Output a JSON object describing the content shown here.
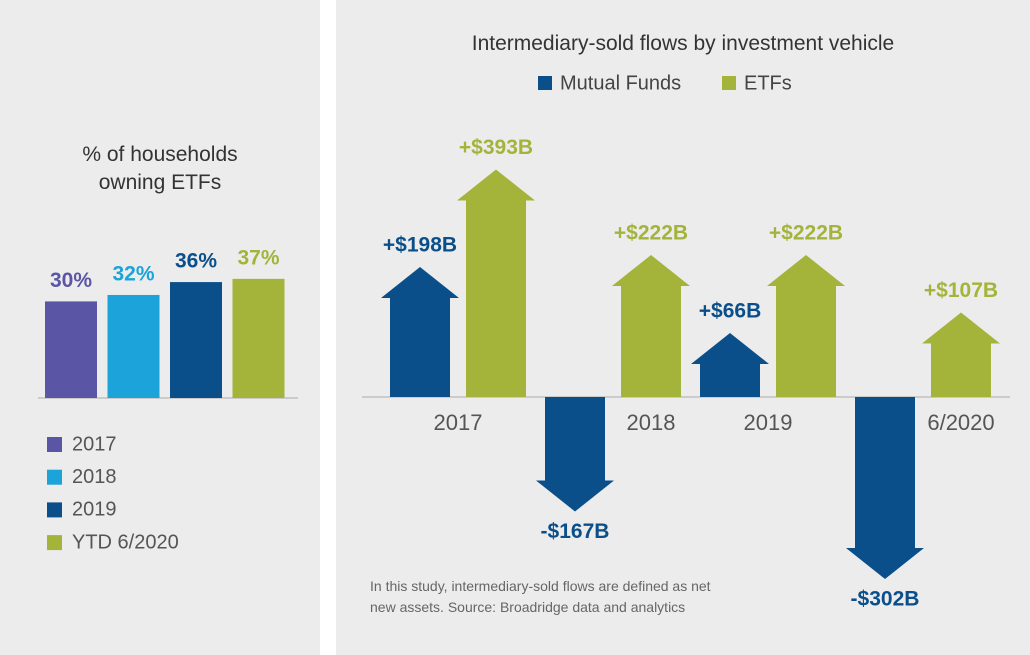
{
  "chart_data": [
    {
      "type": "bar",
      "title": "% of households owning ETFs",
      "categories": [
        "2017",
        "2018",
        "2019",
        "YTD 6/2020"
      ],
      "values": [
        30,
        32,
        36,
        37
      ],
      "value_labels": [
        "30%",
        "32%",
        "36%",
        "37%"
      ],
      "colors": [
        "#5a55a4",
        "#1ba3da",
        "#0b4f8a",
        "#a4b43a"
      ]
    },
    {
      "type": "arrow",
      "title": "Intermediary-sold flows by investment vehicle",
      "categories": [
        "2017",
        "2018",
        "2019",
        "6/2020"
      ],
      "series": [
        {
          "name": "Mutual Funds",
          "color": "#0b4f8a",
          "values": [
            198,
            -167,
            66,
            -302
          ],
          "value_labels": [
            "+$198B",
            "-$167B",
            "+$66B",
            "-$302B"
          ]
        },
        {
          "name": "ETFs",
          "color": "#a4b43a",
          "values": [
            393,
            222,
            222,
            107
          ],
          "value_labels": [
            "+$393B",
            "+$222B",
            "+$222B",
            "+$107B"
          ]
        }
      ],
      "note": "In this study, intermediary-sold flows are defined as net new assets. Source: Broadridge data and analytics"
    }
  ]
}
